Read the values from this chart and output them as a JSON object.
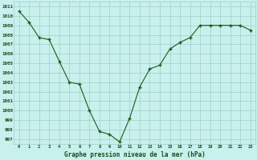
{
  "x": [
    0,
    1,
    2,
    3,
    4,
    5,
    6,
    7,
    8,
    9,
    10,
    11,
    12,
    13,
    14,
    15,
    16,
    17,
    18,
    19,
    20,
    21,
    22,
    23
  ],
  "y": [
    1010.5,
    1009.3,
    1007.7,
    1007.5,
    1005.2,
    1003.0,
    1002.8,
    1000.0,
    997.8,
    997.5,
    996.7,
    999.2,
    1002.5,
    1004.4,
    1004.8,
    1006.5,
    1007.2,
    1007.7,
    1009.0,
    1009.0,
    1009.0,
    1009.0,
    1009.0,
    1008.5
  ],
  "bg_color": "#c8f0ec",
  "grid_color": "#9ecfca",
  "line_color": "#1a5c1a",
  "marker_color": "#1a5c1a",
  "xlabel": "Graphe pression niveau de la mer (hPa)",
  "ylim_min": 996.5,
  "ylim_max": 1011.5,
  "xtick_labels": [
    "0",
    "1",
    "2",
    "3",
    "4",
    "5",
    "6",
    "7",
    "8",
    "9",
    "10",
    "11",
    "12",
    "13",
    "14",
    "15",
    "16",
    "17",
    "18",
    "19",
    "20",
    "21",
    "22",
    "23"
  ],
  "ytick_vals": [
    997,
    998,
    999,
    1000,
    1001,
    1002,
    1003,
    1004,
    1005,
    1006,
    1007,
    1008,
    1009,
    1010,
    1011
  ]
}
